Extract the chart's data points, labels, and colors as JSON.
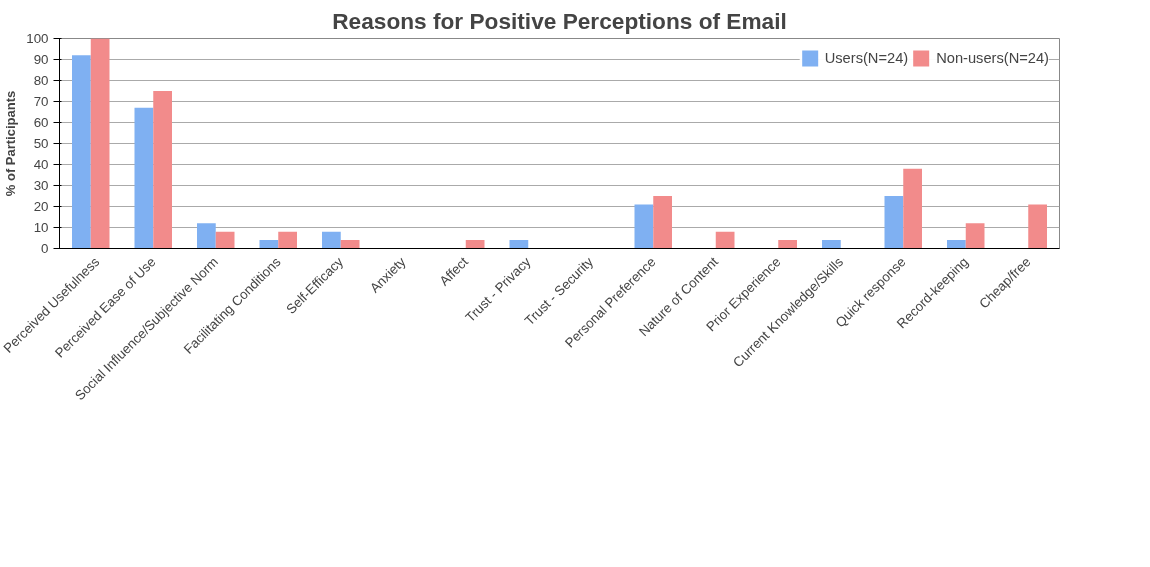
{
  "chart_data": {
    "type": "bar",
    "title": "Reasons for Positive Perceptions of Email",
    "ylabel": "% of Participants",
    "categories": [
      "Perceived Usefulness",
      "Perceived Ease of Use",
      "Social Influence/Subjective Norm",
      "Facilitating Conditions",
      "Self-Efficacy",
      "Anxiety",
      "Affect",
      "Trust - Privacy",
      "Trust - Security",
      "Personal Preference",
      "Nature of Content",
      "Prior Experience",
      "Current Knowledge/Skills",
      "Quick response",
      "Record-keeping",
      "Cheap/free"
    ],
    "series": [
      {
        "name": "Users(N=24)",
        "color": "#7fb0f2",
        "values": [
          92,
          67,
          12,
          4,
          8,
          0,
          0,
          4,
          0,
          21,
          0,
          0,
          4,
          25,
          4,
          0
        ]
      },
      {
        "name": "Non-users(N=24)",
        "color": "#f28b8b",
        "values": [
          100,
          75,
          8,
          8,
          4,
          0,
          4,
          0,
          0,
          25,
          8,
          4,
          0,
          38,
          12,
          21
        ]
      }
    ],
    "ylim": [
      0,
      100
    ],
    "yticks": [
      0,
      10,
      20,
      30,
      40,
      50,
      60,
      70,
      80,
      90,
      100
    ],
    "grid": "y",
    "legend": "top right"
  }
}
